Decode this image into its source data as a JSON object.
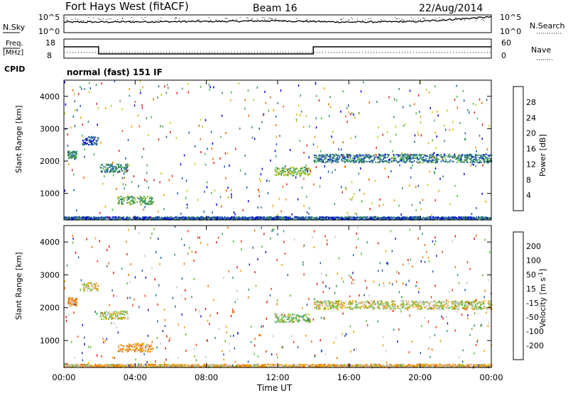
{
  "header": {
    "radar": "Fort Hays West (fitACF)",
    "beam": "Beam 16",
    "date": "22/Aug/2014"
  },
  "top_panel": {
    "left_label": "N.Sky",
    "left_ticks": [
      "10^5",
      "10^0"
    ],
    "right_ticks": [
      "10^5",
      "10^0"
    ],
    "right_label": "N.Search"
  },
  "freq_panel": {
    "left_label_1": "Freq.",
    "left_label_2": "[MHz]",
    "left_ticks": [
      "18",
      "8"
    ],
    "right_ticks": [
      "60",
      "0"
    ],
    "right_label": "Nave",
    "cpid_label": "CPID",
    "cpid_value": "normal (fast) 151 IF"
  },
  "x_axis": {
    "label": "Time UT",
    "ticks": [
      "00:00",
      "04:00",
      "08:00",
      "12:00",
      "16:00",
      "20:00",
      "00:00"
    ]
  },
  "power_panel": {
    "ylabel": "Slant Range [km]",
    "yticks": [
      "4000",
      "3000",
      "2000",
      "1000"
    ],
    "cbar_label": "Power [dB]",
    "cbar_ticks": [
      "28",
      "24",
      "20",
      "16",
      "12",
      "8",
      "4"
    ],
    "colors": [
      "#0000e0",
      "#1e5aaa",
      "#3c8c64",
      "#50b450",
      "#c8c81e",
      "#f0a000",
      "#f06400",
      "#e61e1e"
    ]
  },
  "velocity_panel": {
    "ylabel": "Slant Range [km]",
    "yticks": [
      "4000",
      "3000",
      "2000",
      "1000"
    ],
    "cbar_label": "Velocity [m s",
    "cbar_sup": "-1",
    "cbar_label_end": "]",
    "cbar_ticks": [
      "200",
      "100",
      "50",
      "15",
      "-15",
      "-50",
      "-100",
      "-200"
    ],
    "colors": [
      "#2020c0",
      "#2860a0",
      "#30a060",
      "#60c030",
      "#c8c8c8",
      "#f0a000",
      "#f07000",
      "#f03c14",
      "#e01414"
    ]
  },
  "chart_data": [
    {
      "type": "line",
      "title": "N.Sky / N.Search",
      "x": [
        "00:00",
        "04:00",
        "08:00",
        "12:00",
        "16:00",
        "20:00",
        "00:00"
      ],
      "series": [
        {
          "name": "N.Sky",
          "values": [
            3.0,
            3.1,
            3.2,
            3.4,
            3.0,
            3.2,
            4.6
          ]
        }
      ]
    },
    {
      "type": "line",
      "title": "Freq. [MHz] / Nave",
      "x_hours": [
        0,
        1.95,
        1.95,
        14.0,
        14.0,
        24
      ],
      "series": [
        {
          "name": "Freq.",
          "values": [
            14,
            14,
            10,
            10,
            14,
            14
          ]
        }
      ]
    },
    {
      "type": "heatmap",
      "title": "Power [dB]",
      "xlabel": "Time UT",
      "ylabel": "Slant Range [km]",
      "xlim": [
        0,
        24
      ],
      "ylim": [
        180,
        4500
      ],
      "clim": [
        0,
        30
      ],
      "patches": [
        {
          "t_start_h": 0.2,
          "t_end_h": 0.7,
          "range_km": 2200,
          "power_db": 10
        },
        {
          "t_start_h": 1.0,
          "t_end_h": 1.9,
          "range_km": 2650,
          "power_db": 6
        },
        {
          "t_start_h": 2.0,
          "t_end_h": 3.6,
          "range_km": 1800,
          "power_db": 9
        },
        {
          "t_start_h": 3.0,
          "t_end_h": 5.0,
          "range_km": 800,
          "power_db": 12
        },
        {
          "t_start_h": 11.8,
          "t_end_h": 13.8,
          "range_km": 1700,
          "power_db": 14
        },
        {
          "t_start_h": 14.0,
          "t_end_h": 24,
          "range_km": 2100,
          "power_db": 8
        },
        {
          "t_start_h": 0,
          "t_end_h": 24,
          "range_km": 250,
          "power_db": 6
        }
      ]
    },
    {
      "type": "heatmap",
      "title": "Velocity [m s-1]",
      "xlabel": "Time UT",
      "ylabel": "Slant Range [km]",
      "xlim": [
        0,
        24
      ],
      "ylim": [
        180,
        4500
      ],
      "clim": [
        -200,
        200
      ],
      "patches": [
        {
          "t_start_h": 0.2,
          "t_end_h": 0.7,
          "range_km": 2200,
          "velocity": -50
        },
        {
          "t_start_h": 1.0,
          "t_end_h": 1.9,
          "range_km": 2650,
          "velocity": 0
        },
        {
          "t_start_h": 2.0,
          "t_end_h": 3.6,
          "range_km": 1800,
          "velocity": 0
        },
        {
          "t_start_h": 3.0,
          "t_end_h": 5.0,
          "range_km": 800,
          "velocity": -50
        },
        {
          "t_start_h": 11.8,
          "t_end_h": 13.8,
          "range_km": 1700,
          "velocity": 30
        },
        {
          "t_start_h": 14.0,
          "t_end_h": 24,
          "range_km": 2100,
          "velocity": 0
        },
        {
          "t_start_h": 0,
          "t_end_h": 24,
          "range_km": 250,
          "velocity": -30
        }
      ]
    }
  ]
}
